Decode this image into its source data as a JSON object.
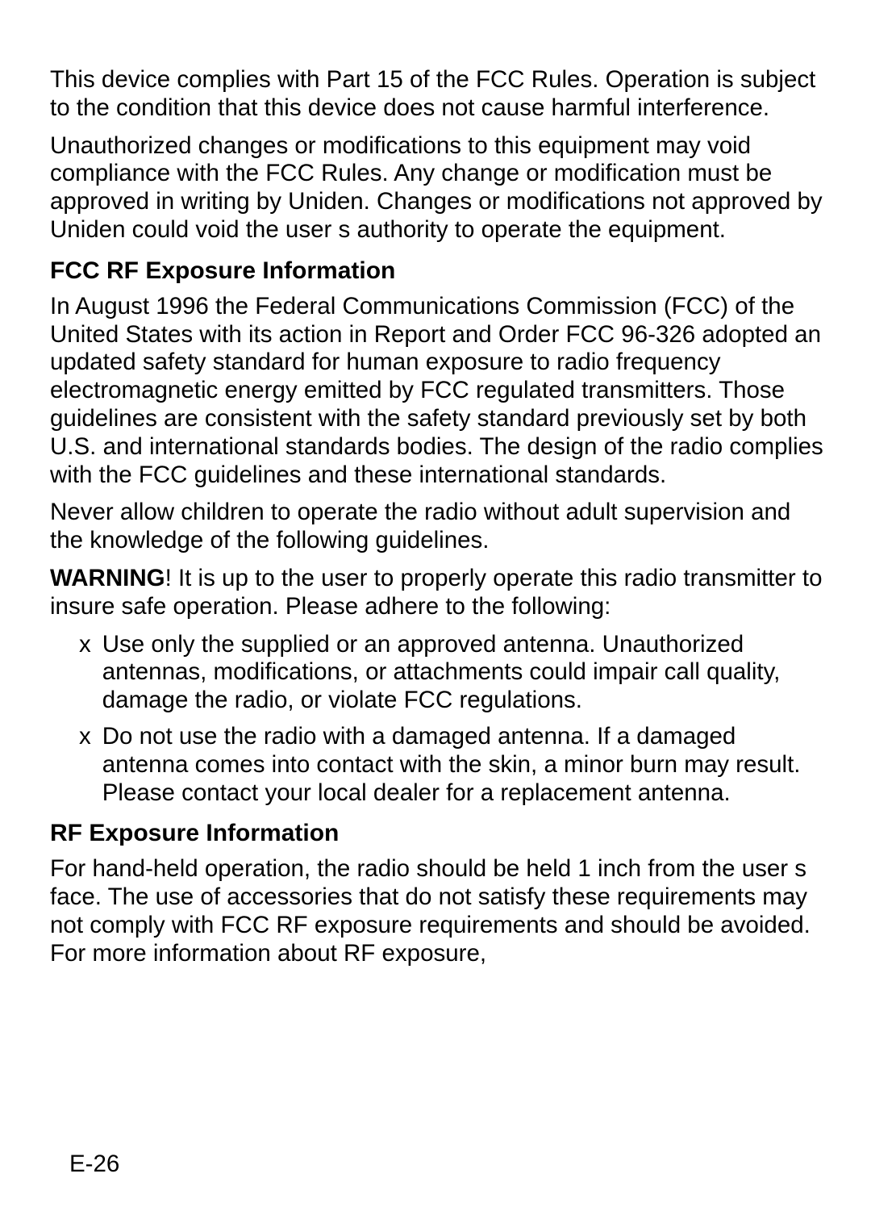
{
  "para1": "This device complies with Part 15 of the FCC Rules. Operation is subject to the condition that this device does not cause harmful interference.",
  "para2": "Unauthorized changes or modifications to this equipment may void compliance with the FCC Rules. Any change or modification must be approved in writing by Uniden. Changes or modifications not approved by Uniden could void the user s authority to operate the equipment.",
  "heading1": "FCC RF Exposure Information",
  "para3": "In August 1996 the Federal Communications Commission (FCC) of the United States with its action in Report and Order FCC 96-326 adopted an updated safety standard for human exposure to radio frequency electromagnetic energy emitted by FCC regulated transmitters. Those guidelines are consistent with the safety standard previously set by both U.S. and international standards bodies. The design of the radio complies with the FCC guidelines and these international standards.",
  "para4": "Never allow children to operate the radio without adult supervision and the knowledge of the following guidelines.",
  "warningLabel": "WARNING",
  "para5": "! It is up to the user to properly operate this radio transmitter to insure safe operation. Please adhere to the following:",
  "bullet": "x",
  "listItem1": "Use only the supplied or an approved antenna. Unauthorized antennas, modifications, or attachments could impair call quality, damage the radio, or violate FCC regulations.",
  "listItem2": "Do not use the radio with a damaged antenna. If a damaged antenna comes into contact with the skin, a minor burn may result. Please contact your local dealer for a replacement antenna.",
  "heading2": "RF Exposure Information",
  "para6": "For hand-held operation, the radio should be held 1 inch from the user s face. The use of accessories that do not satisfy these requirements may not comply with FCC RF exposure requirements and should be avoided. For more information about RF exposure,",
  "pageNumber": "E-26"
}
